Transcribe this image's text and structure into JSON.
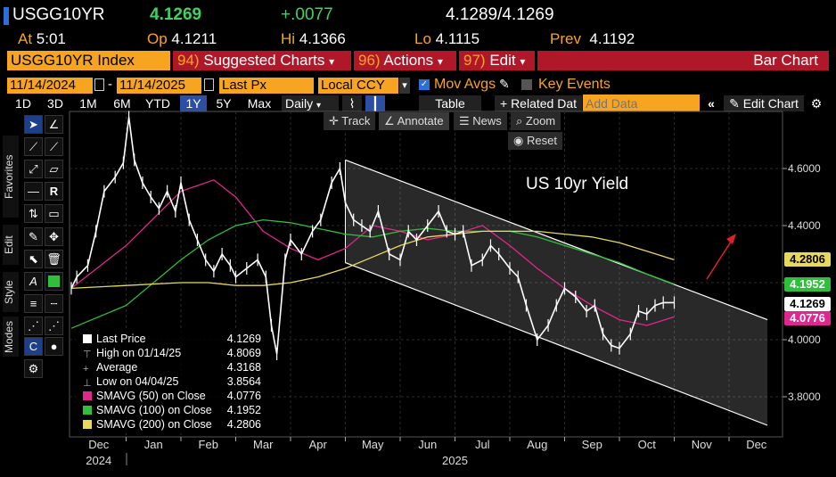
{
  "header": {
    "ticker": "USGG10YR",
    "last": "4.1269",
    "change": "+.0077",
    "bid": "4.1289",
    "ask": "4.1269",
    "bid_ask_sep": "/",
    "at_label": "At",
    "at_value": "5:01",
    "op_label": "Op",
    "op_value": "4.1211",
    "hi_label": "Hi",
    "hi_value": "4.1366",
    "lo_label": "Lo",
    "lo_value": "4.1115",
    "prev_label": "Prev",
    "prev_value": "4.1192"
  },
  "menubar": {
    "index_label": "USGG10YR Index",
    "suggested_num": "94)",
    "suggested_label": "Suggested Charts",
    "actions_num": "96)",
    "actions_label": "Actions",
    "edit_num": "97)",
    "edit_label": "Edit",
    "chart_type": "Bar Chart"
  },
  "params": {
    "start_date": "11/14/2024",
    "end_date": "11/14/2025",
    "dash": "-",
    "field": "Last Px",
    "currency": "Local CCY",
    "mov_avgs": "Mov Avgs",
    "key_events": "Key Events"
  },
  "toolbar": {
    "ranges": [
      "1D",
      "3D",
      "1M",
      "6M",
      "YTD",
      "1Y",
      "5Y",
      "Max"
    ],
    "selected_range": "1Y",
    "period": "Daily",
    "table": "Table",
    "related": "+ Related Dat",
    "add_data_placeholder": "Add Data",
    "edit_chart": "Edit Chart"
  },
  "sidebar": {
    "tabs": [
      "Favorites",
      "Edit",
      "Style",
      "Modes"
    ]
  },
  "chart_controls": {
    "track": "Track",
    "annotate": "Annotate",
    "news": "News",
    "zoom": "Zoom",
    "reset": "Reset"
  },
  "colors": {
    "price": "#ffffff",
    "sma50": "#e0278f",
    "sma100": "#2fbf3a",
    "sma200": "#e8d95a",
    "channel": "#ffffff",
    "arrow": "#e0202a",
    "accent": "#f7a520",
    "menu_red": "#b0182a"
  },
  "legend": [
    {
      "icon": "square",
      "label": "Last Price",
      "value": "4.1269",
      "color": "#ffffff"
    },
    {
      "icon": "high",
      "label": "High on 01/14/25",
      "value": "4.8069",
      "color": "#aaaaaa"
    },
    {
      "icon": "avg",
      "label": "Average",
      "value": "4.3168",
      "color": "#aaaaaa"
    },
    {
      "icon": "low",
      "label": "Low on 04/04/25",
      "value": "3.8564",
      "color": "#aaaaaa"
    },
    {
      "icon": "square",
      "label": "SMAVG (50)  on Close",
      "value": "4.0776",
      "color": "#e0278f"
    },
    {
      "icon": "square",
      "label": "SMAVG (100)  on Close",
      "value": "4.1952",
      "color": "#2fbf3a"
    },
    {
      "icon": "square",
      "label": "SMAVG (200)  on Close",
      "value": "4.2806",
      "color": "#e8d95a"
    }
  ],
  "price_labels": [
    {
      "value": "4.2806",
      "y": 4.2806,
      "bg": "#e8d95a",
      "fg": "#000000"
    },
    {
      "value": "4.1952",
      "y": 4.1952,
      "bg": "#2fbf3a",
      "fg": "#ffffff"
    },
    {
      "value": "4.1269",
      "y": 4.1269,
      "bg": "#ffffff",
      "fg": "#000000"
    },
    {
      "value": "4.0776",
      "y": 4.0776,
      "bg": "#e0278f",
      "fg": "#ffffff"
    }
  ],
  "chart_data": {
    "type": "line",
    "annotation": "US 10yr Yield",
    "y_ticks": [
      "4.6000",
      "4.4000",
      "4.2000",
      "4.0000",
      "3.8000"
    ],
    "ylim": [
      3.7,
      4.9
    ],
    "x_months": [
      "Dec",
      "Jan",
      "Feb",
      "Mar",
      "Apr",
      "May",
      "Jun",
      "Jul",
      "Aug",
      "Sep",
      "Oct",
      "Nov",
      "Dec"
    ],
    "x_years": [
      {
        "label": "2024",
        "at_month": 0
      },
      {
        "label": "2025",
        "at_month": 6.5
      }
    ],
    "series": [
      {
        "name": "Last Price",
        "x": [
          0,
          0.1,
          0.3,
          0.45,
          0.6,
          0.8,
          0.95,
          1.05,
          1.15,
          1.3,
          1.45,
          1.6,
          1.75,
          1.9,
          2.0,
          2.15,
          2.3,
          2.45,
          2.6,
          2.75,
          2.9,
          3.0,
          3.2,
          3.4,
          3.55,
          3.65,
          3.75,
          3.9,
          4.0,
          4.2,
          4.4,
          4.55,
          4.75,
          4.9,
          5.0,
          5.15,
          5.3,
          5.45,
          5.6,
          5.8,
          6.0,
          6.15,
          6.3,
          6.5,
          6.7,
          6.85,
          7.0,
          7.15,
          7.3,
          7.5,
          7.65,
          7.8,
          8.0,
          8.15,
          8.3,
          8.5,
          8.7,
          8.85,
          9.0,
          9.2,
          9.4,
          9.55,
          9.7,
          9.85,
          10.0,
          10.2,
          10.35,
          10.5,
          10.65,
          10.8,
          11.0
        ],
        "y": [
          4.18,
          4.22,
          4.26,
          4.38,
          4.52,
          4.57,
          4.62,
          4.78,
          4.63,
          4.55,
          4.5,
          4.46,
          4.52,
          4.45,
          4.55,
          4.42,
          4.35,
          4.28,
          4.24,
          4.3,
          4.26,
          4.22,
          4.25,
          4.28,
          4.22,
          4.05,
          3.95,
          4.28,
          4.35,
          4.3,
          4.38,
          4.42,
          4.55,
          4.6,
          4.48,
          4.42,
          4.4,
          4.38,
          4.45,
          4.3,
          4.28,
          4.38,
          4.35,
          4.4,
          4.45,
          4.38,
          4.37,
          4.38,
          4.26,
          4.28,
          4.33,
          4.3,
          4.25,
          4.22,
          4.12,
          4.0,
          4.05,
          4.12,
          4.18,
          4.15,
          4.1,
          4.12,
          4.02,
          3.98,
          3.97,
          4.02,
          4.1,
          4.09,
          4.12,
          4.13,
          4.13
        ]
      },
      {
        "name": "SMAVG (50)  on Close",
        "x": [
          0,
          1,
          2,
          2.6,
          3,
          3.5,
          4,
          4.5,
          5,
          5.5,
          6,
          6.5,
          7,
          7.5,
          8,
          8.5,
          9,
          9.5,
          10,
          10.5,
          11
        ],
        "y": [
          4.18,
          4.33,
          4.52,
          4.56,
          4.5,
          4.38,
          4.32,
          4.28,
          4.32,
          4.4,
          4.38,
          4.35,
          4.37,
          4.4,
          4.33,
          4.25,
          4.18,
          4.12,
          4.07,
          4.05,
          4.08
        ]
      },
      {
        "name": "SMAVG (100)  on Close",
        "x": [
          0,
          1,
          2,
          2.5,
          3,
          3.5,
          4,
          4.5,
          5,
          5.5,
          6,
          6.5,
          7,
          7.5,
          8,
          8.5,
          9,
          9.5,
          10,
          10.5,
          11
        ],
        "y": [
          4.04,
          4.12,
          4.28,
          4.35,
          4.4,
          4.42,
          4.41,
          4.39,
          4.37,
          4.36,
          4.38,
          4.39,
          4.38,
          4.38,
          4.38,
          4.36,
          4.33,
          4.3,
          4.27,
          4.23,
          4.195
        ]
      },
      {
        "name": "SMAVG (200)  on Close",
        "x": [
          0,
          1,
          2,
          2.5,
          3,
          3.5,
          4,
          4.5,
          5,
          5.5,
          6,
          6.5,
          7,
          7.5,
          8,
          8.5,
          9,
          9.5,
          10,
          10.5,
          11
        ],
        "y": [
          4.18,
          4.19,
          4.2,
          4.2,
          4.19,
          4.19,
          4.2,
          4.22,
          4.25,
          4.29,
          4.33,
          4.36,
          4.37,
          4.38,
          4.38,
          4.38,
          4.37,
          4.36,
          4.34,
          4.31,
          4.28
        ]
      }
    ],
    "channel_upper": [
      [
        5.0,
        4.63
      ],
      [
        12.7,
        4.07
      ]
    ],
    "channel_lower": [
      [
        5.0,
        4.27
      ],
      [
        12.7,
        3.7
      ]
    ]
  }
}
